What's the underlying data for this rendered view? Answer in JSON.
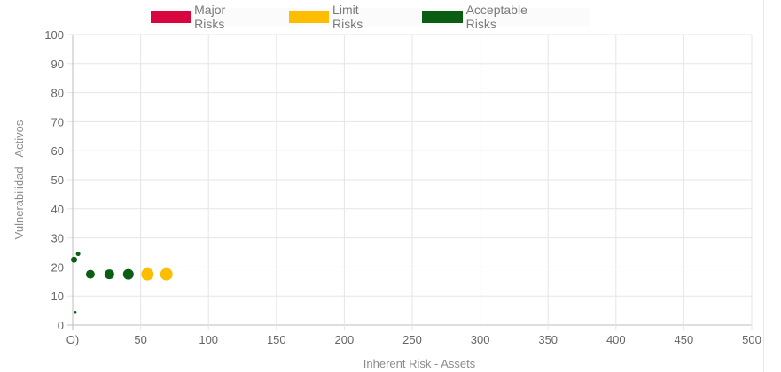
{
  "chart_data": {
    "type": "scatter",
    "title": "",
    "xlabel": "Inherent Risk -    Assets",
    "ylabel": "Vulnerabilidad - Activos",
    "xlim": [
      0,
      500
    ],
    "ylim": [
      0,
      100
    ],
    "xticks": [
      0,
      50,
      100,
      150,
      200,
      250,
      300,
      350,
      400,
      450,
      500
    ],
    "xtick_labels": [
      "O)",
      "50",
      "100",
      "150",
      "200",
      "250",
      "300",
      "350",
      "400",
      "450",
      "500"
    ],
    "yticks": [
      0,
      10,
      20,
      30,
      40,
      50,
      60,
      70,
      80,
      90,
      100
    ],
    "grid": true,
    "legend_position": "top",
    "series": [
      {
        "name": "Major Risks",
        "color": "#d7063f",
        "points": []
      },
      {
        "name": "Limit Risks",
        "color": "#fdbd00",
        "points": [
          {
            "x": 55,
            "y": 17.5,
            "r": 7
          },
          {
            "x": 69,
            "y": 17.5,
            "r": 7
          }
        ]
      },
      {
        "name": "Acceptable Risks",
        "color": "#0a5e14",
        "points": [
          {
            "x": 2,
            "y": 4.5,
            "r": 1.3
          },
          {
            "x": 1,
            "y": 22.5,
            "r": 3.5
          },
          {
            "x": 4,
            "y": 24.5,
            "r": 2.5
          },
          {
            "x": 13,
            "y": 17.5,
            "r": 5
          },
          {
            "x": 27,
            "y": 17.5,
            "r": 5.5
          },
          {
            "x": 41,
            "y": 17.5,
            "r": 6
          }
        ]
      }
    ]
  }
}
